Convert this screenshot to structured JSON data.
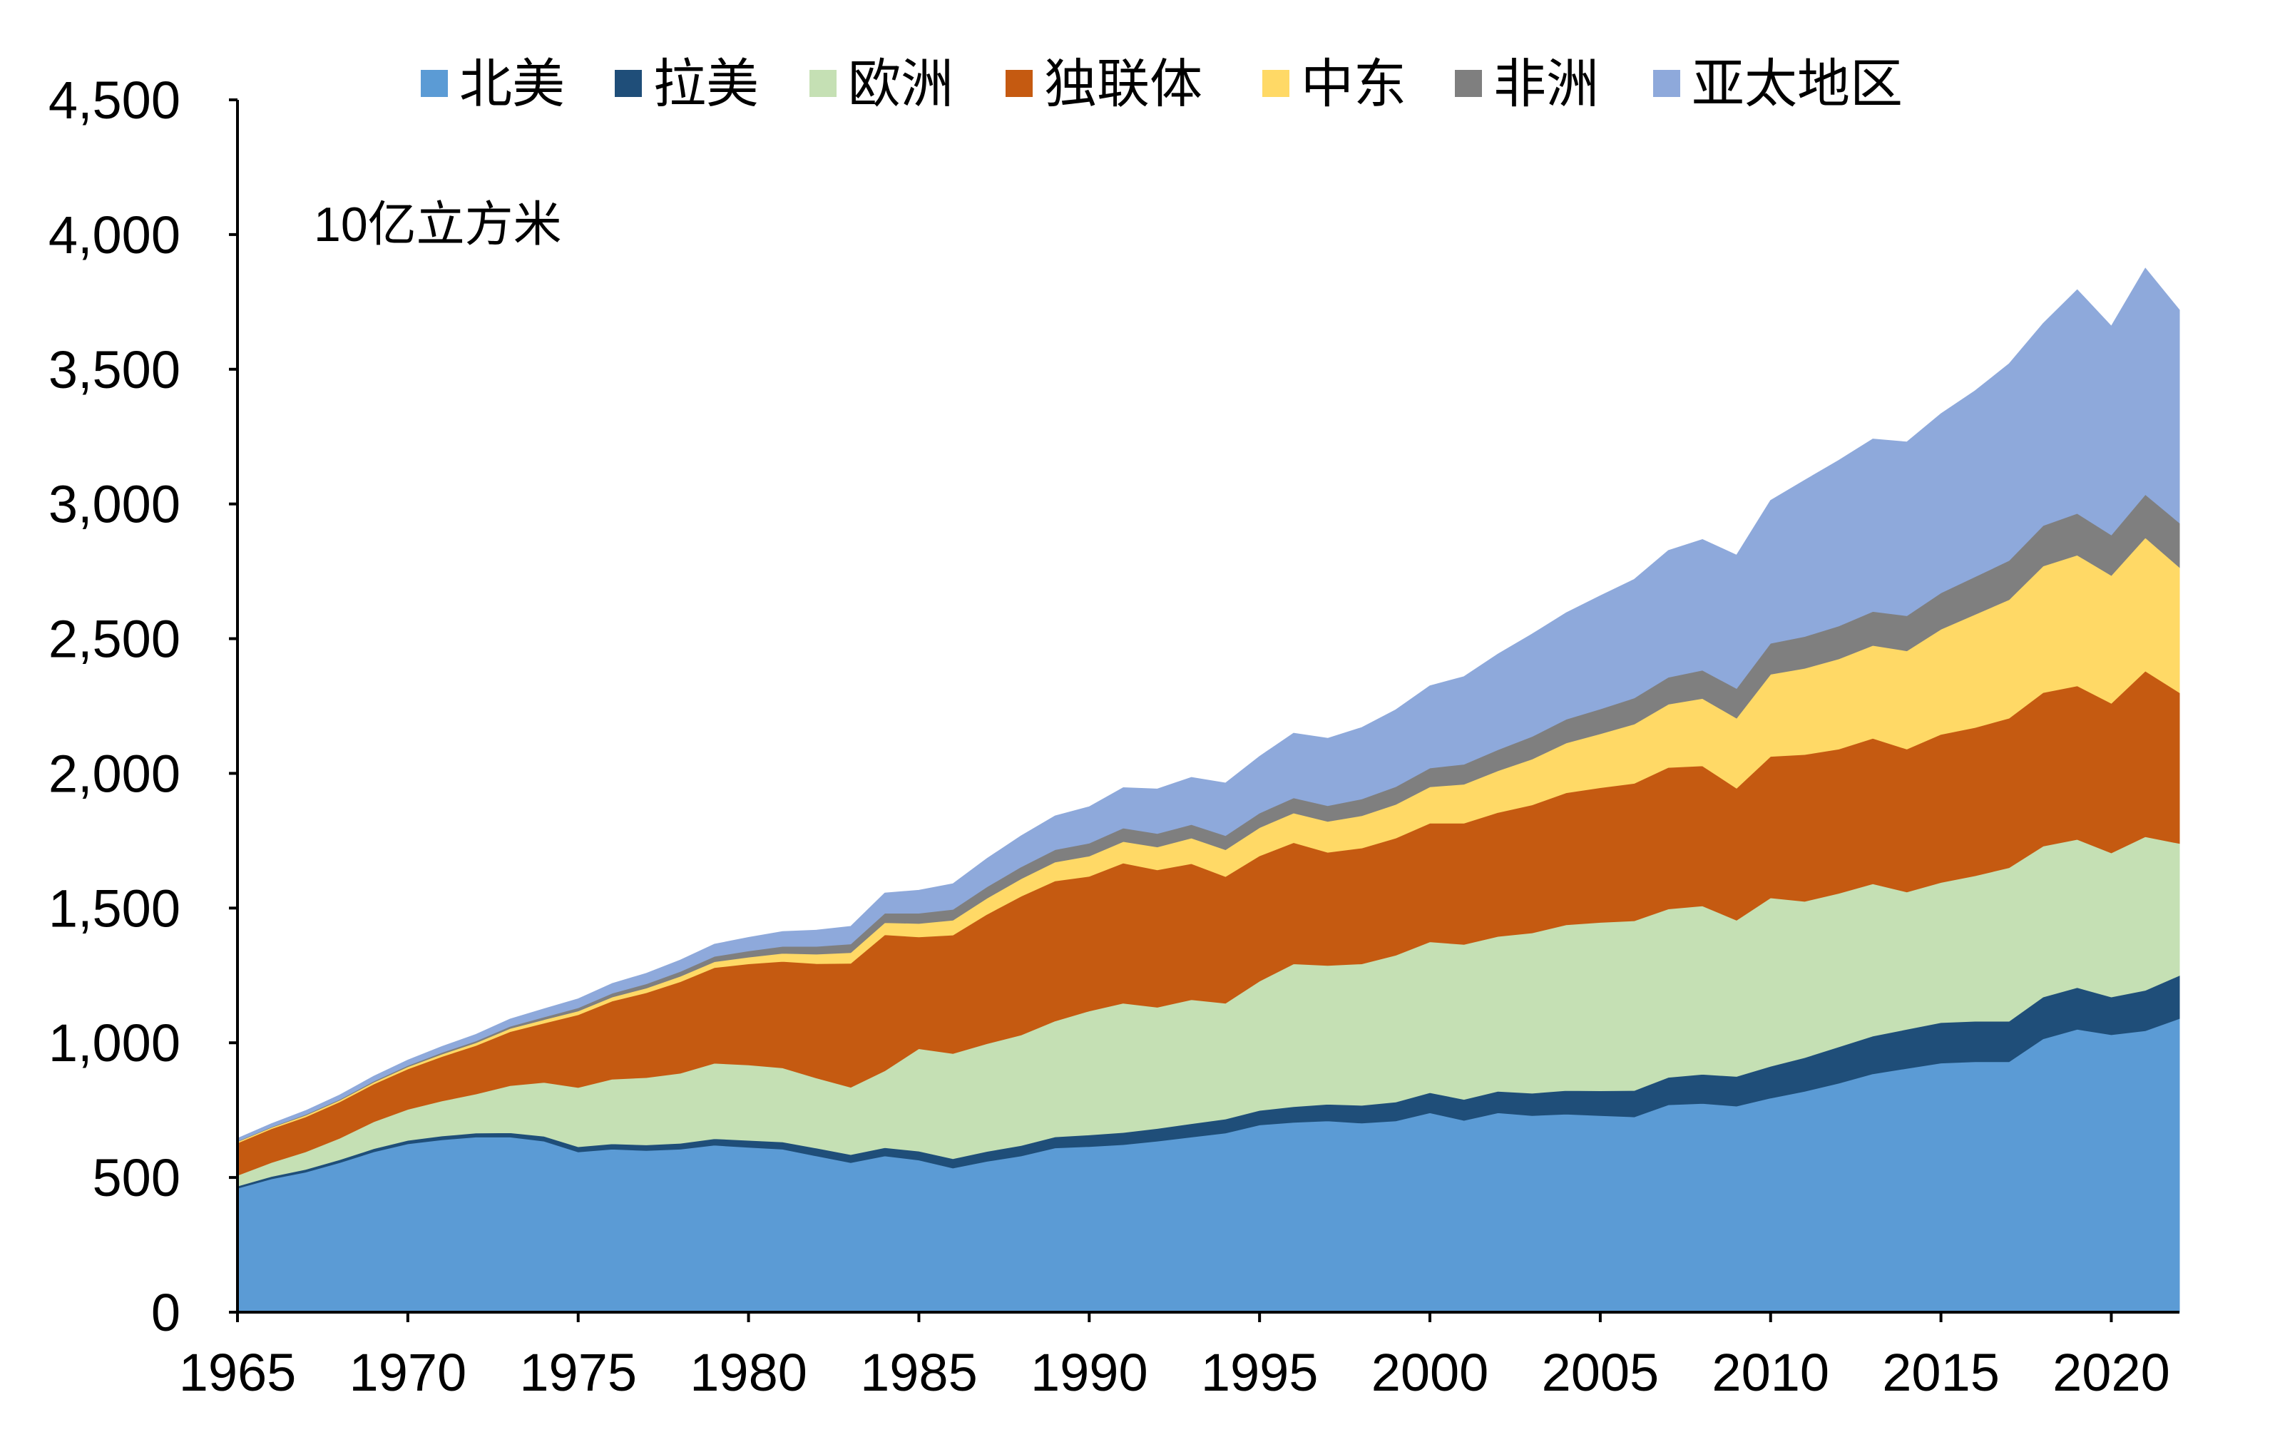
{
  "chart_data": {
    "type": "area",
    "stacked": true,
    "title": "",
    "unit_label": "10亿立方米",
    "xlabel": "",
    "ylabel": "",
    "xlim": [
      1965,
      2022
    ],
    "ylim": [
      0,
      4500
    ],
    "x_ticks": [
      1965,
      1970,
      1975,
      1980,
      1985,
      1990,
      1995,
      2000,
      2005,
      2010,
      2015,
      2020
    ],
    "y_ticks": [
      0,
      500,
      1000,
      1500,
      2000,
      2500,
      3000,
      3500,
      4000,
      4500
    ],
    "y_tick_labels": [
      "0",
      "500",
      "1,000",
      "1,500",
      "2,000",
      "2,500",
      "3,000",
      "3,500",
      "4,000",
      "4,500"
    ],
    "legend_position": "top",
    "x": [
      1965,
      1966,
      1967,
      1968,
      1969,
      1970,
      1971,
      1972,
      1973,
      1974,
      1975,
      1976,
      1977,
      1978,
      1979,
      1980,
      1981,
      1982,
      1983,
      1984,
      1985,
      1986,
      1987,
      1988,
      1989,
      1990,
      1991,
      1992,
      1993,
      1994,
      1995,
      1996,
      1997,
      1998,
      1999,
      2000,
      2001,
      2002,
      2003,
      2004,
      2005,
      2006,
      2007,
      2008,
      2009,
      2010,
      2011,
      2012,
      2013,
      2014,
      2015,
      2016,
      2017,
      2018,
      2019,
      2020,
      2021,
      2022
    ],
    "series": [
      {
        "name": "北美",
        "color": "#5B9BD5",
        "values": [
          460,
          495,
          520,
          555,
          595,
          625,
          640,
          650,
          650,
          635,
          595,
          605,
          600,
          605,
          620,
          612,
          605,
          580,
          555,
          580,
          565,
          535,
          560,
          580,
          610,
          615,
          622,
          635,
          650,
          665,
          695,
          705,
          710,
          702,
          710,
          740,
          712,
          740,
          730,
          735,
          730,
          725,
          770,
          775,
          765,
          795,
          820,
          850,
          885,
          905,
          925,
          930,
          930,
          1015,
          1050,
          1030,
          1045,
          1090
        ]
      },
      {
        "name": "拉美",
        "color": "#1F4E79",
        "values": [
          8,
          9,
          10,
          11,
          12,
          13,
          14,
          15,
          16,
          18,
          19,
          20,
          21,
          22,
          24,
          26,
          27,
          29,
          30,
          31,
          33,
          35,
          37,
          39,
          41,
          43,
          45,
          47,
          50,
          52,
          54,
          58,
          62,
          66,
          70,
          75,
          78,
          80,
          83,
          88,
          92,
          98,
          102,
          108,
          110,
          118,
          125,
          135,
          140,
          145,
          150,
          150,
          150,
          155,
          155,
          140,
          150,
          160
        ]
      },
      {
        "name": "欧洲",
        "color": "#C5E0B4",
        "values": [
          40,
          52,
          65,
          80,
          100,
          115,
          130,
          145,
          175,
          200,
          220,
          240,
          250,
          260,
          280,
          280,
          275,
          260,
          250,
          285,
          380,
          390,
          400,
          410,
          430,
          460,
          480,
          450,
          460,
          430,
          480,
          530,
          515,
          525,
          545,
          560,
          575,
          575,
          595,
          615,
          625,
          630,
          625,
          625,
          580,
          625,
          580,
          570,
          565,
          510,
          520,
          540,
          570,
          560,
          550,
          535,
          570,
          490
        ]
      },
      {
        "name": "独联体",
        "color": "#C55A11",
        "values": [
          120,
          125,
          130,
          135,
          140,
          150,
          165,
          180,
          200,
          220,
          270,
          290,
          315,
          340,
          355,
          375,
          395,
          425,
          460,
          505,
          415,
          440,
          480,
          515,
          520,
          500,
          520,
          510,
          505,
          470,
          465,
          450,
          420,
          430,
          435,
          440,
          450,
          460,
          475,
          490,
          500,
          510,
          525,
          520,
          490,
          525,
          545,
          535,
          540,
          530,
          550,
          550,
          555,
          570,
          570,
          555,
          615,
          560
        ]
      },
      {
        "name": "中东",
        "color": "#FFD966",
        "values": [
          5,
          5,
          6,
          6,
          7,
          8,
          9,
          10,
          12,
          13,
          14,
          15,
          17,
          20,
          22,
          25,
          30,
          35,
          40,
          45,
          50,
          55,
          60,
          65,
          70,
          75,
          80,
          85,
          95,
          100,
          105,
          110,
          115,
          120,
          125,
          135,
          145,
          155,
          170,
          185,
          200,
          220,
          235,
          250,
          260,
          305,
          320,
          335,
          345,
          365,
          390,
          420,
          440,
          470,
          485,
          475,
          495,
          465
        ]
      },
      {
        "name": "非洲",
        "color": "#7F7F7F",
        "values": [
          2,
          2,
          3,
          3,
          4,
          5,
          6,
          7,
          8,
          10,
          12,
          14,
          16,
          18,
          20,
          23,
          26,
          29,
          32,
          35,
          38,
          40,
          42,
          44,
          46,
          48,
          50,
          50,
          50,
          52,
          54,
          56,
          58,
          62,
          66,
          70,
          74,
          78,
          84,
          88,
          92,
          97,
          100,
          105,
          110,
          115,
          118,
          122,
          126,
          130,
          135,
          140,
          145,
          150,
          155,
          150,
          160,
          165
        ]
      },
      {
        "name": "亚太地区",
        "color": "#8EA9DB",
        "values": [
          10,
          12,
          14,
          16,
          18,
          20,
          22,
          24,
          27,
          30,
          33,
          36,
          39,
          42,
          45,
          50,
          55,
          60,
          65,
          75,
          85,
          95,
          105,
          115,
          125,
          135,
          150,
          165,
          175,
          195,
          210,
          240,
          250,
          265,
          285,
          305,
          325,
          355,
          380,
          395,
          420,
          440,
          470,
          485,
          495,
          530,
          580,
          615,
          640,
          645,
          665,
          690,
          730,
          750,
          830,
          775,
          840,
          790
        ]
      }
    ]
  }
}
